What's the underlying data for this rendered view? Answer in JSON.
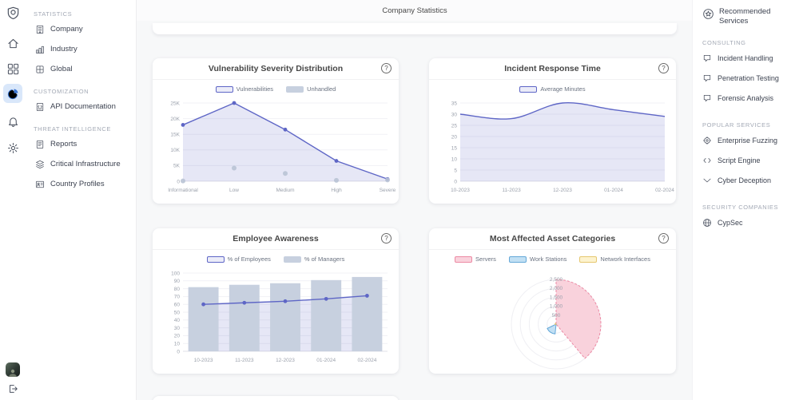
{
  "page": {
    "title": "Company Statistics"
  },
  "ui": {
    "help_glyph": "?"
  },
  "colors": {
    "accent_purple": "#5e66c6",
    "purple_fill": "rgba(97,105,198,0.16)",
    "series_gray": "#c7d0df",
    "active_blue": "#3e78d4",
    "active_blue_bg": "#d9e7fa",
    "content_bg": "#f7f8f9"
  },
  "sidebar": {
    "sections": [
      {
        "label": "STATISTICS",
        "items": [
          {
            "label": "Company"
          },
          {
            "label": "Industry"
          },
          {
            "label": "Global"
          }
        ]
      },
      {
        "label": "CUSTOMIZATION",
        "items": [
          {
            "label": "API Documentation"
          }
        ]
      },
      {
        "label": "THREAT INTELLIGENCE",
        "items": [
          {
            "label": "Reports"
          },
          {
            "label": "Critical Infrastructure"
          },
          {
            "label": "Country Profiles"
          }
        ]
      }
    ]
  },
  "services": {
    "title": "Recommended Services",
    "sections": [
      {
        "label": "CONSULTING",
        "items": [
          "Incident Handling",
          "Penetration Testing",
          "Forensic Analysis"
        ]
      },
      {
        "label": "POPULAR SERVICES",
        "items": [
          "Enterprise Fuzzing",
          "Script Engine",
          "Cyber Deception"
        ]
      },
      {
        "label": "SECURITY COMPANIES",
        "items": [
          "CypSec"
        ]
      }
    ]
  },
  "chart_data": [
    {
      "type": "line",
      "title": "Vulnerability Severity Distribution",
      "categories": [
        "Informational",
        "Low",
        "Medium",
        "High",
        "Severe"
      ],
      "x_mode": "edge",
      "ylim": [
        0,
        25000
      ],
      "yticks": [
        "0",
        "5K",
        "10K",
        "15K",
        "20K",
        "25K"
      ],
      "legend_position": "top",
      "legend": [
        {
          "label": "Vulnerabilities",
          "fill": "#ebecf8",
          "stroke": "#5e66c6"
        },
        {
          "label": "Unhandled",
          "fill": "#c7d0df",
          "stroke": "#c7d0df"
        }
      ],
      "series": [
        {
          "name": "Vulnerabilities",
          "type": "line",
          "color": "#5e66c6",
          "area": true,
          "values": [
            18000,
            25000,
            16500,
            6500,
            700
          ]
        },
        {
          "name": "Unhandled",
          "type": "scatter",
          "color": "#b9c3d5",
          "values": [
            100,
            4200,
            2500,
            300,
            400
          ]
        }
      ]
    },
    {
      "type": "area",
      "title": "Incident Response Time",
      "categories": [
        "10-2023",
        "11-2023",
        "12-2023",
        "01-2024",
        "02-2024"
      ],
      "x_mode": "edge",
      "ylim": [
        0,
        35
      ],
      "yticks": [
        "0",
        "5",
        "10",
        "15",
        "20",
        "25",
        "30",
        "35"
      ],
      "legend_position": "top",
      "legend": [
        {
          "label": "Average Minutes",
          "fill": "#ebecf8",
          "stroke": "#5e66c6"
        }
      ],
      "series": [
        {
          "name": "Average Minutes",
          "type": "line",
          "color": "#5e66c6",
          "area": true,
          "smooth": true,
          "markers": false,
          "values": [
            30,
            28,
            35,
            32,
            29
          ]
        }
      ]
    },
    {
      "type": "bar+line",
      "title": "Employee Awareness",
      "categories": [
        "10-2023",
        "11-2023",
        "12-2023",
        "01-2024",
        "02-2024"
      ],
      "x_mode": "center",
      "ylim": [
        0,
        100
      ],
      "yticks": [
        "0",
        "10",
        "20",
        "30",
        "40",
        "50",
        "60",
        "70",
        "80",
        "90",
        "100"
      ],
      "legend_position": "top",
      "legend": [
        {
          "label": "% of Employees",
          "fill": "#ebecf8",
          "stroke": "#5e66c6"
        },
        {
          "label": "% of Managers",
          "fill": "#c7d0df",
          "stroke": "#c7d0df"
        }
      ],
      "series": [
        {
          "name": "% of Employees",
          "type": "line",
          "color": "#5e66c6",
          "area": true,
          "values": [
            60,
            62,
            64,
            67,
            71
          ]
        },
        {
          "name": "% of Managers",
          "type": "bar",
          "color": "#c7d0df",
          "values": [
            82,
            85,
            87,
            91,
            95
          ]
        }
      ]
    },
    {
      "type": "polar",
      "title": "Most Affected Asset Categories",
      "rmax": 2500,
      "rticks": [
        "500",
        "1,000",
        "1,500",
        "2,000",
        "2,500"
      ],
      "legend_position": "top",
      "legend": [
        {
          "label": "Servers",
          "fill": "#f9d2dc",
          "stroke": "#ec8aa4"
        },
        {
          "label": "Work Stations",
          "fill": "#c2e0f4",
          "stroke": "#64a8d8"
        },
        {
          "label": "Network Interfaces",
          "fill": "#fdf3cf",
          "stroke": "#e5c76f"
        }
      ],
      "sectors": [
        {
          "name": "Servers",
          "value": 2500,
          "start_deg": 0,
          "end_deg": 140,
          "fill": "#f9d2dc",
          "stroke": "#ec8aa4",
          "dash": "3 2"
        },
        {
          "name": "Work Stations",
          "value": 550,
          "start_deg": 186,
          "end_deg": 244,
          "fill": "#c2e0f4",
          "stroke": "#64a8d8",
          "dash": ""
        },
        {
          "name": "Network Interfaces",
          "value": 60,
          "start_deg": 250,
          "end_deg": 320,
          "fill": "#fdf3cf",
          "stroke": "#e5c76f",
          "dash": ""
        }
      ]
    }
  ]
}
